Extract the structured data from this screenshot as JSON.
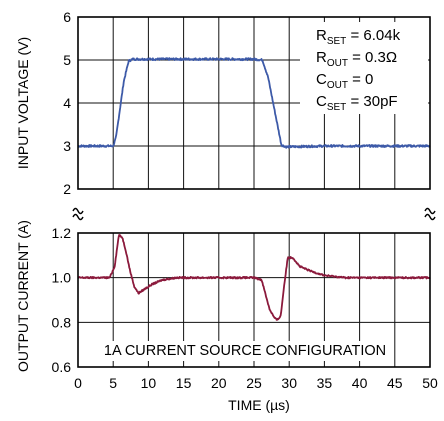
{
  "chart_data": {
    "type": "line",
    "xlabel": "TIME (µs)",
    "x_ticks": [
      "0",
      "5",
      "10",
      "15",
      "20",
      "25",
      "30",
      "35",
      "40",
      "45",
      "50"
    ],
    "xlim": [
      0,
      50
    ],
    "grid": true,
    "caption": "1A CURRENT SOURCE CONFIGURATION",
    "legend_position": "top-right",
    "legend": [
      {
        "main": "R",
        "sub": "SET",
        "rest": " = 6.04k"
      },
      {
        "main": "R",
        "sub": "OUT",
        "rest": " = 0.3Ω"
      },
      {
        "main": "C",
        "sub": "OUT",
        "rest": " = 0"
      },
      {
        "main": "C",
        "sub": "SET",
        "rest": " = 30pF"
      }
    ],
    "panels": [
      {
        "name": "input-voltage",
        "ylabel": "INPUT VOLTAGE (V)",
        "ylim": [
          2,
          6
        ],
        "y_ticks": [
          "2",
          "3",
          "4",
          "5",
          "6"
        ],
        "color": "#3d5aa8",
        "x": [
          0,
          5,
          5.4,
          6.5,
          7.2,
          7.8,
          10,
          15,
          20,
          25,
          26.2,
          27.0,
          28.2,
          28.9,
          29.6,
          35,
          40,
          45,
          50
        ],
        "y": [
          3.0,
          3.0,
          3.2,
          4.5,
          4.98,
          5.02,
          5.02,
          5.02,
          5.02,
          5.02,
          5.0,
          4.6,
          3.6,
          3.02,
          2.98,
          3.0,
          3.0,
          3.0,
          3.0
        ]
      },
      {
        "name": "output-current",
        "ylabel": "OUTPUT CURRENT (A)",
        "ylim": [
          0.6,
          1.2
        ],
        "y_ticks": [
          "0.6",
          "0.8",
          "1.0",
          "1.2"
        ],
        "color": "#8b1a3c",
        "x": [
          0,
          4.5,
          5.2,
          5.8,
          6.3,
          6.8,
          7.4,
          8.0,
          8.6,
          9.5,
          10.5,
          12,
          14,
          17,
          20,
          25,
          26.1,
          26.6,
          27.2,
          27.9,
          28.3,
          28.8,
          29.3,
          29.8,
          30.5,
          31.5,
          33,
          35,
          38,
          40,
          45,
          50
        ],
        "y": [
          1.0,
          1.0,
          1.05,
          1.19,
          1.18,
          1.12,
          1.03,
          0.96,
          0.93,
          0.95,
          0.97,
          0.99,
          1.0,
          1.0,
          1.0,
          1.0,
          0.99,
          0.93,
          0.86,
          0.82,
          0.81,
          0.83,
          0.97,
          1.09,
          1.09,
          1.05,
          1.03,
          1.01,
          1.0,
          1.0,
          1.0,
          1.0
        ]
      }
    ]
  }
}
